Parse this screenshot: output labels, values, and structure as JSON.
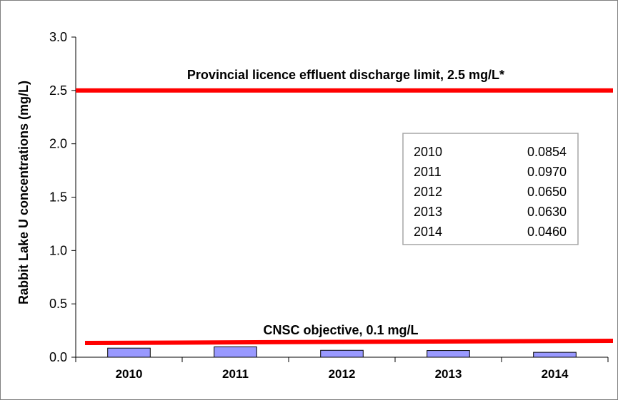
{
  "chart_data": {
    "type": "bar",
    "categories": [
      "2010",
      "2011",
      "2012",
      "2013",
      "2014"
    ],
    "values": [
      0.0854,
      0.097,
      0.065,
      0.063,
      0.046
    ],
    "ylabel": "Rabbit Lake U concentrations (mg/L)",
    "xlabel": "",
    "title": "",
    "ylim": [
      0,
      3.0
    ],
    "yticks": [
      "0.0",
      "0.5",
      "1.0",
      "1.5",
      "2.0",
      "2.5",
      "3.0"
    ],
    "grid": false,
    "bar_color": "#9999ff",
    "reference_lines": [
      {
        "label": "Provincial licence effluent discharge limit, 2.5 mg/L*",
        "value": 2.5,
        "color": "#ff0000"
      },
      {
        "label": "CNSC objective, 0.1 mg/L",
        "value": 0.1,
        "color": "#ff0000"
      }
    ],
    "inset_table": {
      "rows": [
        {
          "year": "2010",
          "value": "0.0854"
        },
        {
          "year": "2011",
          "value": "0.0970"
        },
        {
          "year": "2012",
          "value": "0.0650"
        },
        {
          "year": "2013",
          "value": "0.0630"
        },
        {
          "year": "2014",
          "value": "0.0460"
        }
      ]
    }
  }
}
